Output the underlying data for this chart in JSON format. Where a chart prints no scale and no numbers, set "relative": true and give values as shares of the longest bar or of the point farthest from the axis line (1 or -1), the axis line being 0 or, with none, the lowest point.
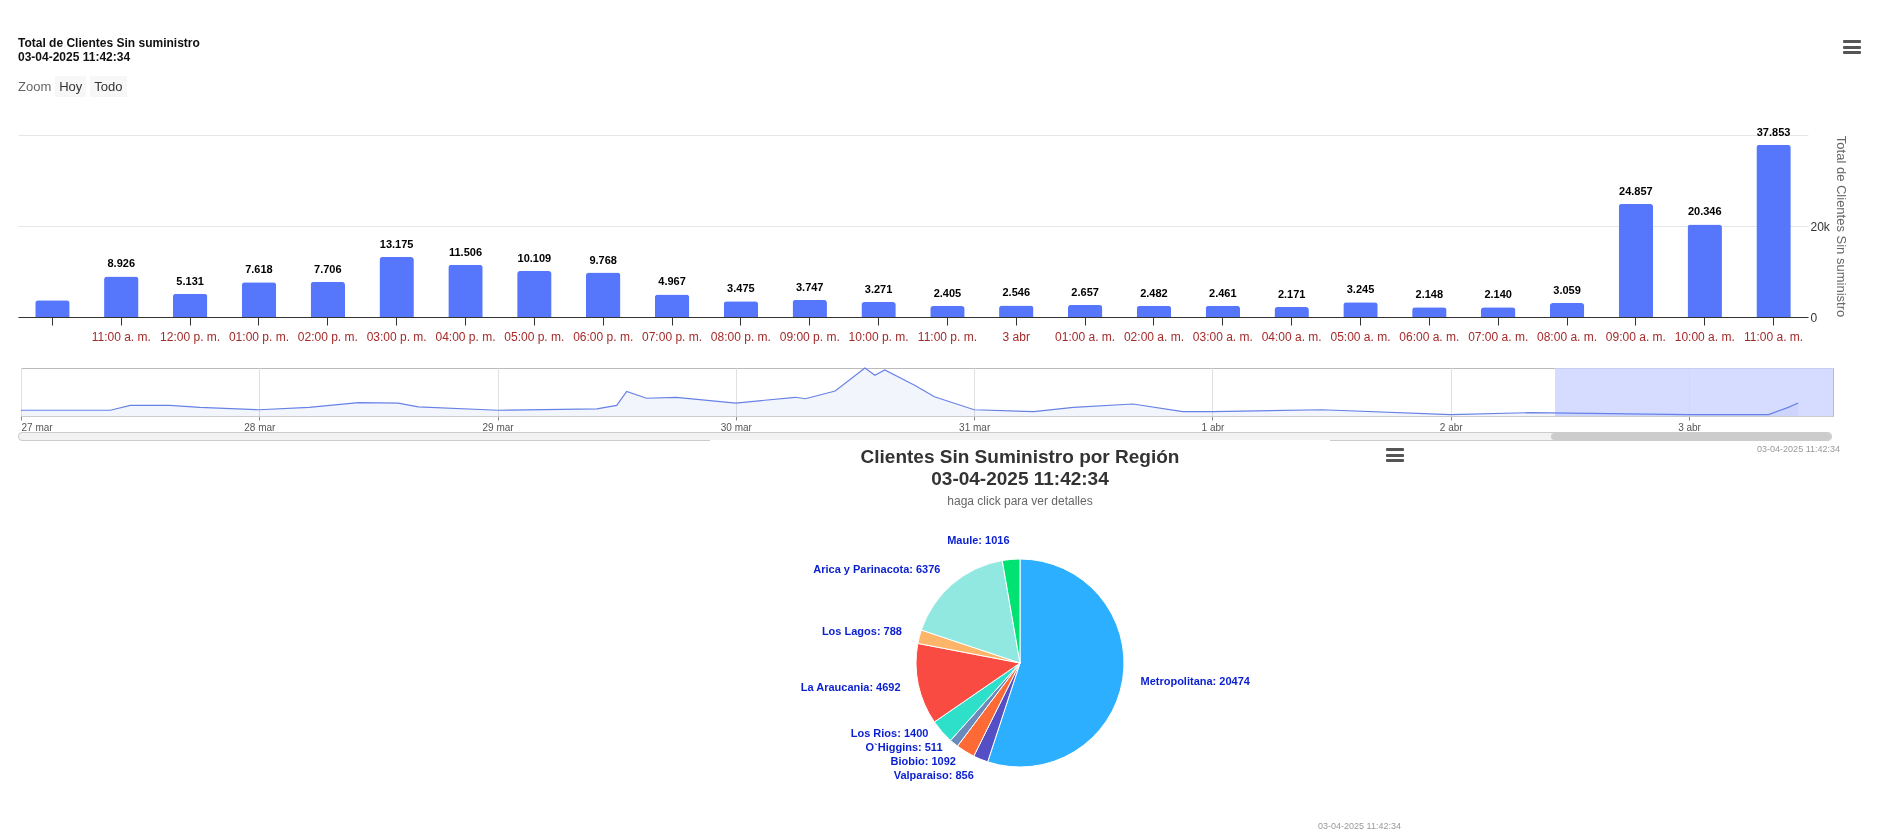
{
  "chart_data": [
    {
      "type": "bar",
      "title": "Total de Clientes Sin suministro",
      "subtitle": "03-04-2025 11:42:34",
      "ylabel": "Total de Clientes Sin suministro",
      "categories": [
        null,
        "11:00 a. m.",
        "12:00 p. m.",
        "01:00 p. m.",
        "02:00 p. m.",
        "03:00 p. m.",
        "04:00 p. m.",
        "05:00 p. m.",
        "06:00 p. m.",
        "07:00 p. m.",
        "08:00 p. m.",
        "09:00 p. m.",
        "10:00 p. m.",
        "11:00 p. m.",
        "3 abr",
        "01:00 a. m.",
        "02:00 a. m.",
        "03:00 a. m.",
        "04:00 a. m.",
        "05:00 a. m.",
        "06:00 a. m.",
        "07:00 a. m.",
        "08:00 a. m.",
        "09:00 a. m.",
        "10:00 a. m.",
        "11:00 a. m."
      ],
      "values": [
        3700,
        8926,
        5131,
        7618,
        7706,
        13175,
        11506,
        10109,
        9768,
        4967,
        3475,
        3747,
        3271,
        2405,
        2546,
        2657,
        2482,
        2461,
        2171,
        3245,
        2148,
        2140,
        3059,
        24857,
        20346,
        37853
      ],
      "value_labels": [
        null,
        "8.926",
        "5.131",
        "7.618",
        "7.706",
        "13.175",
        "11.506",
        "10.109",
        "9.768",
        "4.967",
        "3.475",
        "3.747",
        "3.271",
        "2.405",
        "2.546",
        "2.657",
        "2.482",
        "2.461",
        "2.171",
        "3.245",
        "2.148",
        "2.140",
        "3.059",
        "24.857",
        "20.346",
        "37.853"
      ],
      "color": "#5677fc",
      "ylim": [
        0,
        40000
      ],
      "yticks": [
        0,
        {
          "value": 20000,
          "label": "20k"
        },
        {
          "value": 40000,
          "label": null
        }
      ],
      "grid": "y",
      "annotations": [
        "Zoom",
        "Hoy",
        "Todo"
      ]
    },
    {
      "type": "area",
      "relative": true,
      "color": "#6682e6",
      "x": [
        "2025-03-27T00:00",
        "2025-03-27T09:00",
        "2025-03-27T11:00",
        "2025-03-27T15:00",
        "2025-03-27T18:00",
        "2025-03-28T00:00",
        "2025-03-28T05:00",
        "2025-03-28T10:00",
        "2025-03-28T14:00",
        "2025-03-28T16:00",
        "2025-03-29T00:00",
        "2025-03-29T10:00",
        "2025-03-29T12:00",
        "2025-03-29T13:00",
        "2025-03-29T15:00",
        "2025-03-29T18:00",
        "2025-03-30T00:00",
        "2025-03-30T06:00",
        "2025-03-30T07:00",
        "2025-03-30T10:00",
        "2025-03-30T13:00",
        "2025-03-30T14:00",
        "2025-03-30T15:00",
        "2025-03-30T18:00",
        "2025-03-30T20:00",
        "2025-03-31T00:00",
        "2025-03-31T06:00",
        "2025-03-31T10:00",
        "2025-03-31T16:00",
        "2025-03-31T21:00",
        "2025-04-01T00:00",
        "2025-04-01T11:00",
        "2025-04-02T00:00",
        "2025-04-02T08:00",
        "2025-04-03T00:00",
        "2025-04-03T08:00",
        "2025-04-03T10:00",
        "2025-04-03T11:00"
      ],
      "values": [
        0.12,
        0.12,
        0.22,
        0.22,
        0.18,
        0.13,
        0.18,
        0.28,
        0.27,
        0.19,
        0.12,
        0.15,
        0.22,
        0.51,
        0.37,
        0.39,
        0.27,
        0.39,
        0.36,
        0.52,
        1,
        0.85,
        0.96,
        0.64,
        0.4,
        0.13,
        0.09,
        0.18,
        0.25,
        0.09,
        0.09,
        0.13,
        0.03,
        0.07,
        0.03,
        0.03,
        0.18,
        0.27
      ],
      "xlim": [
        "2025-03-27T00:00",
        "2025-04-03T14:30"
      ],
      "xticks": [
        {
          "value": "2025-03-27",
          "label": "27 mar"
        },
        {
          "value": "2025-03-28",
          "label": "28 mar"
        },
        {
          "value": "2025-03-29",
          "label": "29 mar"
        },
        {
          "value": "2025-03-30",
          "label": "30 mar"
        },
        {
          "value": "2025-03-31",
          "label": "31 mar"
        },
        {
          "value": "2025-04-01",
          "label": "1 abr"
        },
        {
          "value": "2025-04-02",
          "label": "2 abr"
        },
        {
          "value": "2025-04-03",
          "label": "3 abr"
        }
      ],
      "grid": "x",
      "bands": [
        {
          "axis": "x",
          "from": "2025-04-02T10:30",
          "to": "2025-04-03T14:30",
          "color": "#ccd3ff"
        }
      ],
      "annotations": [
        "03-04-2025 11:42:34"
      ]
    },
    {
      "type": "pie",
      "title": "Clientes Sin Suministro por Región",
      "subtitle": "03-04-2025 11:42:34",
      "categories": [
        "Metropolitana: 20474",
        "Valparaiso: 856",
        "Biobio: 1092",
        "O`Higgins: 511",
        "Los Rios: 1400",
        "La Araucania: 4692",
        "Los Lagos: 788",
        "Arica y Parinacota: 6376",
        "Maule: 1016"
      ],
      "values": [
        20474,
        856,
        1092,
        511,
        1400,
        4692,
        788,
        6376,
        1016
      ],
      "colors": [
        "#2caffe",
        "#544fc5",
        "#fe6a35",
        "#6b8abc",
        "#2ee0ca",
        "#fa4b42",
        "#feb56a",
        "#91e8e1",
        "#00e272"
      ],
      "annotations": [
        "haga click para ver detalles",
        "03-04-2025 11:42:34"
      ]
    }
  ]
}
